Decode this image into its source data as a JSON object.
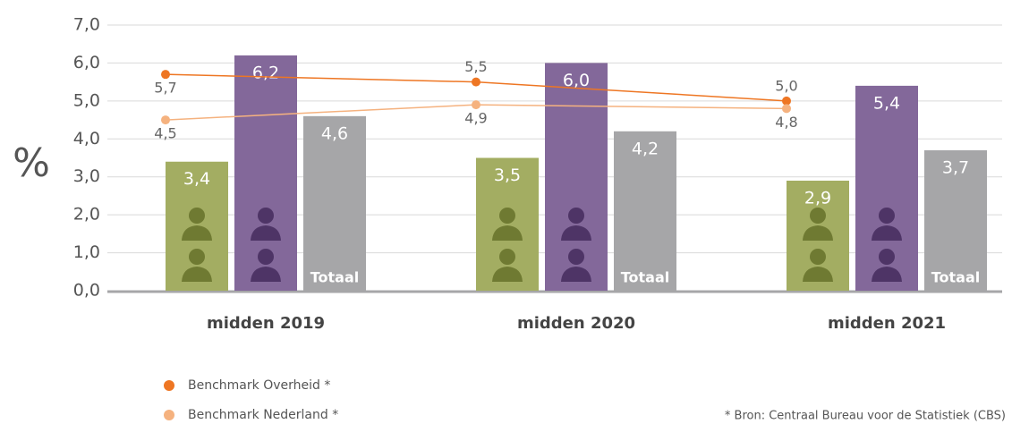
{
  "chart_data": {
    "type": "bar",
    "y_label": "%",
    "categories": [
      "midden 2019",
      "midden 2020",
      "midden 2021"
    ],
    "series": [
      {
        "color": "#a3ad62",
        "values": [
          3.4,
          3.5,
          2.9
        ],
        "value_labels": [
          "3,4",
          "3,5",
          "2,9"
        ]
      },
      {
        "color": "#83689a",
        "values": [
          6.2,
          6.0,
          5.4
        ],
        "value_labels": [
          "6,2",
          "6,0",
          "5,4"
        ]
      },
      {
        "name": "Totaal",
        "color": "#a6a6a8",
        "values": [
          4.6,
          4.2,
          3.7
        ],
        "value_labels": [
          "4,6",
          "4,2",
          "3,7"
        ]
      },
      {
        "name": "Benchmark Overheid *",
        "type": "line",
        "color": "#ee7623",
        "values": [
          5.7,
          5.5,
          5.0
        ],
        "value_labels": [
          "5,7",
          "5,5",
          "5,0"
        ]
      },
      {
        "name": "Benchmark Nederland *",
        "type": "line",
        "color": "#f5b27f",
        "values": [
          4.5,
          4.9,
          4.8
        ],
        "value_labels": [
          "4,5",
          "4,9",
          "4,8"
        ]
      }
    ],
    "ylim": [
      0,
      7
    ],
    "yticks": [
      {
        "value": 0,
        "label": "0,0"
      },
      {
        "value": 1,
        "label": "1,0"
      },
      {
        "value": 2,
        "label": "2,0"
      },
      {
        "value": 3,
        "label": "3,0"
      },
      {
        "value": 4,
        "label": "4,0"
      },
      {
        "value": 5,
        "label": "5,0"
      },
      {
        "value": 6,
        "label": "6,0"
      },
      {
        "value": 7,
        "label": "7,0"
      }
    ],
    "grid": true,
    "footnote": "* Bron: Centraal Bureau voor de Statistiek (CBS)"
  }
}
